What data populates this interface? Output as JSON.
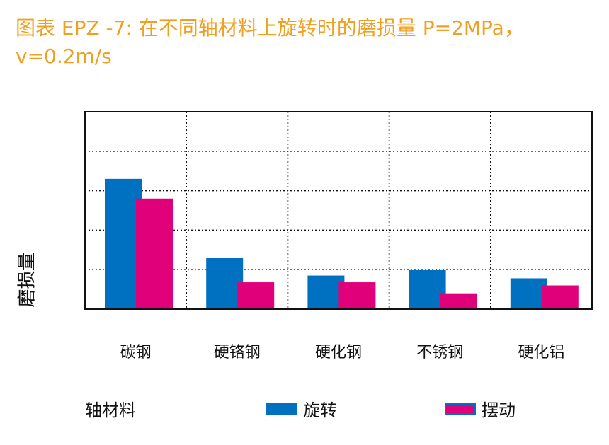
{
  "chart_data": {
    "type": "bar",
    "title": "图表  EPZ -7: 在不同轴材料上旋转时的磨损量 P=2MPa，v=0.2m/s",
    "xlabel": "轴材料",
    "ylabel": "磨损量",
    "categories": [
      "碳钢",
      "硬铬钢",
      "硬化钢",
      "不锈钢",
      "硬化铝"
    ],
    "series": [
      {
        "name": "旋转",
        "color": "#0070c0",
        "values": [
          3.3,
          1.3,
          0.85,
          1.0,
          0.78
        ]
      },
      {
        "name": "摆动",
        "color": "#e0007a",
        "values": [
          2.8,
          0.68,
          0.68,
          0.4,
          0.6
        ]
      }
    ],
    "ylim": [
      0,
      5
    ],
    "grid": true,
    "y_tick_labels_shown": false,
    "legend_placement": "bottom"
  }
}
